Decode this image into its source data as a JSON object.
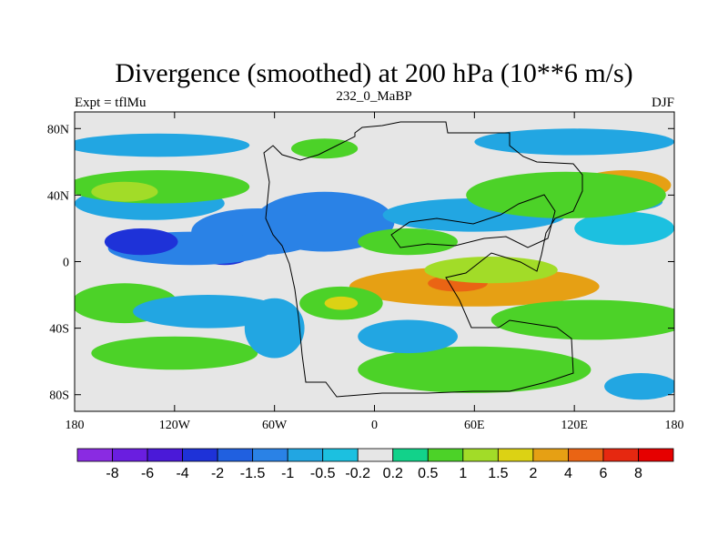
{
  "chart_data": {
    "type": "heatmap",
    "title": "Divergence (smoothed) at 200 hPa (10**6 m/s)",
    "left_label": "Expt = tflMu",
    "center_label": "232_0_MaBP",
    "right_label": "DJF",
    "x_range": [
      -180,
      180
    ],
    "y_range": [
      -90,
      90
    ],
    "x_ticks": [
      {
        "value": -180,
        "label": "180"
      },
      {
        "value": -120,
        "label": "120W"
      },
      {
        "value": -60,
        "label": "60W"
      },
      {
        "value": 0,
        "label": "0"
      },
      {
        "value": 60,
        "label": "60E"
      },
      {
        "value": 120,
        "label": "120E"
      },
      {
        "value": 180,
        "label": "180"
      }
    ],
    "y_ticks": [
      {
        "value": 80,
        "label": "80N"
      },
      {
        "value": 40,
        "label": "40N"
      },
      {
        "value": 0,
        "label": "0"
      },
      {
        "value": -40,
        "label": "40S"
      },
      {
        "value": -80,
        "label": "80S"
      }
    ],
    "levels": [
      -8,
      -6,
      -4,
      -2,
      -1.5,
      -1,
      -0.5,
      -0.2,
      0.2,
      0.5,
      1,
      1.5,
      2,
      4,
      6,
      8
    ],
    "level_labels": [
      "-8",
      "-6",
      "-4",
      "-2",
      "-1.5",
      "-1",
      "-0.5",
      "-0.2",
      "0.2",
      "0.5",
      "1",
      "1.5",
      "2",
      "4",
      "6",
      "8"
    ],
    "colors": [
      "#8a2be2",
      "#6a1ee0",
      "#4a19d8",
      "#1e32d8",
      "#2060e0",
      "#2a82e6",
      "#22a6e2",
      "#1cc0e0",
      "#e6e6e6",
      "#12d28a",
      "#4cd228",
      "#a2dc28",
      "#dcd214",
      "#e6a014",
      "#ea6414",
      "#e62810",
      "#e60000"
    ],
    "background_color": "#e6e6e6",
    "blobs": [
      {
        "lon": -40,
        "lat": 26,
        "rx": 26,
        "ry": 12,
        "value": -3
      },
      {
        "lon": -30,
        "lat": 24,
        "rx": 42,
        "ry": 18,
        "value": -1.5
      },
      {
        "lon": -70,
        "lat": 18,
        "rx": 40,
        "ry": 14,
        "value": -1.2
      },
      {
        "lon": -90,
        "lat": 5,
        "rx": 16,
        "ry": 7,
        "value": -3
      },
      {
        "lon": -110,
        "lat": 8,
        "rx": 50,
        "ry": 10,
        "value": -1.2
      },
      {
        "lon": -140,
        "lat": 12,
        "rx": 22,
        "ry": 8,
        "value": -2.2
      },
      {
        "lon": -135,
        "lat": 35,
        "rx": 45,
        "ry": 10,
        "value": -0.7
      },
      {
        "lon": 60,
        "lat": 28,
        "rx": 55,
        "ry": 10,
        "value": -0.7
      },
      {
        "lon": 150,
        "lat": 20,
        "rx": 30,
        "ry": 10,
        "value": -0.5
      },
      {
        "lon": 135,
        "lat": 36,
        "rx": 38,
        "ry": 7,
        "value": -0.6
      },
      {
        "lon": -130,
        "lat": 70,
        "rx": 55,
        "ry": 7,
        "value": -0.6
      },
      {
        "lon": 120,
        "lat": 72,
        "rx": 60,
        "ry": 8,
        "value": -0.6
      },
      {
        "lon": -30,
        "lat": 68,
        "rx": 20,
        "ry": 6,
        "value": 0.7
      },
      {
        "lon": 60,
        "lat": -15,
        "rx": 75,
        "ry": 12,
        "value": 2.5
      },
      {
        "lon": 50,
        "lat": -13,
        "rx": 18,
        "ry": 5,
        "value": 5
      },
      {
        "lon": 70,
        "lat": -5,
        "rx": 40,
        "ry": 8,
        "value": 1.2
      },
      {
        "lon": 150,
        "lat": 46,
        "rx": 28,
        "ry": 9,
        "value": 2.5
      },
      {
        "lon": 115,
        "lat": 40,
        "rx": 60,
        "ry": 14,
        "value": 0.9
      },
      {
        "lon": -130,
        "lat": 45,
        "rx": 55,
        "ry": 10,
        "value": 0.9
      },
      {
        "lon": -150,
        "lat": 42,
        "rx": 20,
        "ry": 6,
        "value": 1.2
      },
      {
        "lon": -150,
        "lat": -25,
        "rx": 32,
        "ry": 12,
        "value": 0.8
      },
      {
        "lon": -120,
        "lat": -55,
        "rx": 50,
        "ry": 10,
        "value": 0.7
      },
      {
        "lon": -20,
        "lat": -25,
        "rx": 25,
        "ry": 10,
        "value": 0.9
      },
      {
        "lon": -20,
        "lat": -25,
        "rx": 10,
        "ry": 4,
        "value": 1.5
      },
      {
        "lon": 60,
        "lat": -65,
        "rx": 70,
        "ry": 14,
        "value": 0.8
      },
      {
        "lon": 130,
        "lat": -35,
        "rx": 60,
        "ry": 12,
        "value": 0.7
      },
      {
        "lon": 20,
        "lat": 12,
        "rx": 30,
        "ry": 8,
        "value": 0.8
      },
      {
        "lon": -100,
        "lat": -30,
        "rx": 45,
        "ry": 10,
        "value": -0.8
      },
      {
        "lon": -60,
        "lat": -40,
        "rx": 18,
        "ry": 18,
        "value": -0.8
      },
      {
        "lon": 20,
        "lat": -45,
        "rx": 30,
        "ry": 10,
        "value": -0.6
      },
      {
        "lon": 160,
        "lat": -75,
        "rx": 22,
        "ry": 8,
        "value": -0.6
      }
    ]
  }
}
